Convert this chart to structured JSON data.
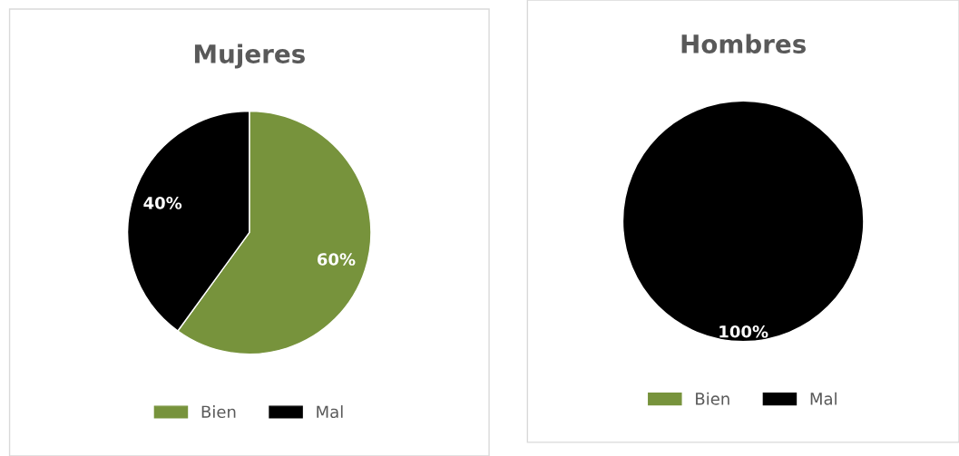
{
  "chart_data": [
    {
      "type": "pie",
      "title": "Mujeres",
      "categories": [
        "Bien",
        "Mal"
      ],
      "values": [
        60,
        40
      ],
      "colors": [
        "#77933c",
        "#000000"
      ],
      "value_labels": [
        "60%",
        "40%"
      ],
      "legend": "bottom"
    },
    {
      "type": "pie",
      "title": "Hombres",
      "categories": [
        "Bien",
        "Mal"
      ],
      "values": [
        0,
        100
      ],
      "colors": [
        "#77933c",
        "#000000"
      ],
      "value_labels": [
        null,
        "100%"
      ],
      "legend": "bottom"
    }
  ]
}
